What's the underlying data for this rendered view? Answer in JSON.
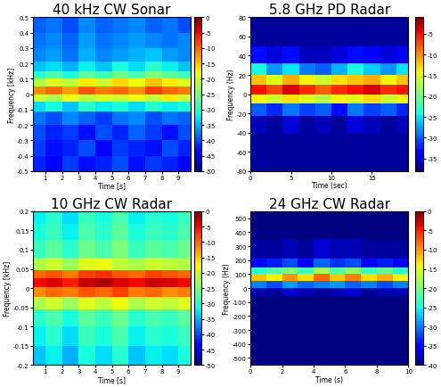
{
  "chart_data": [
    {
      "type": "heatmap",
      "title": "40 kHz CW Sonar",
      "x_label": "Time [s]",
      "y_label": "Frequency [kHz]",
      "xlim": [
        0.25,
        9.75
      ],
      "xticks": [
        1,
        2,
        3,
        4,
        5,
        6,
        7,
        8,
        9
      ],
      "ylim": [
        -0.5,
        0.5
      ],
      "yticks": [
        -0.5,
        -0.4,
        -0.3,
        -0.2,
        -0.1,
        0,
        0.1,
        0.2,
        0.3,
        0.4,
        0.5
      ],
      "x": [
        0.5,
        1.5,
        2.5,
        3.5,
        4.5,
        5.5,
        6.5,
        7.5,
        8.5,
        9.5
      ],
      "y": [
        -0.45,
        -0.35,
        -0.25,
        -0.15,
        -0.075,
        -0.025,
        0.025,
        0.075,
        0.125,
        0.175,
        0.25,
        0.35,
        0.45
      ],
      "cells": [
        [
          -42,
          -44,
          -41,
          -43,
          -42,
          -40,
          -43,
          -41,
          -42,
          -44
        ],
        [
          -41,
          -43,
          -42,
          -40,
          -44,
          -41,
          -42,
          -43,
          -40,
          -42
        ],
        [
          -40,
          -42,
          -41,
          -43,
          -40,
          -42,
          -39,
          -41,
          -43,
          -40
        ],
        [
          -38,
          -40,
          -37,
          -39,
          -41,
          -38,
          -37,
          -40,
          -38,
          -39
        ],
        [
          -33,
          -31,
          -34,
          -30,
          -32,
          -31,
          -33,
          -30,
          -32,
          -31
        ],
        [
          -20,
          -22,
          -18,
          -21,
          -19,
          -20,
          -18,
          -21,
          -17,
          -20
        ],
        [
          -12,
          -10,
          -13,
          -9,
          -11,
          -10,
          -12,
          -8,
          -10,
          -11
        ],
        [
          -22,
          -19,
          -21,
          -17,
          -20,
          -16,
          -18,
          -15,
          -17,
          -19
        ],
        [
          -30,
          -28,
          -31,
          -27,
          -29,
          -26,
          -28,
          -25,
          -27,
          -29
        ],
        [
          -34,
          -33,
          -35,
          -32,
          -34,
          -31,
          -33,
          -30,
          -32,
          -34
        ],
        [
          -37,
          -36,
          -38,
          -35,
          -37,
          -36,
          -35,
          -34,
          -36,
          -37
        ],
        [
          -38,
          -37,
          -39,
          -36,
          -38,
          -37,
          -36,
          -37,
          -38,
          -37
        ],
        [
          -39,
          -38,
          -40,
          -37,
          -39,
          -38,
          -37,
          -39,
          -38,
          -40
        ]
      ],
      "clim": [
        -50,
        0
      ],
      "cticks": [
        0,
        -5,
        -10,
        -15,
        -20,
        -25,
        -30,
        -35,
        -40,
        -45,
        -50
      ]
    },
    {
      "type": "heatmap",
      "title": "5.8 GHz PD Radar",
      "x_label": "Time (sec)",
      "y_label": "Frequency (Hz)",
      "xlim": [
        0,
        19.5
      ],
      "xticks": [
        0,
        5,
        10,
        15
      ],
      "ylim": [
        -80,
        80
      ],
      "yticks": [
        -80,
        -60,
        -40,
        -20,
        0,
        20,
        40,
        60,
        80
      ],
      "x": [
        1,
        3,
        5,
        7,
        9,
        11,
        13,
        15,
        17,
        19
      ],
      "y": [
        -70,
        -50,
        -30,
        -15,
        -5,
        5,
        15,
        25,
        40,
        60,
        75
      ],
      "cells": [
        [
          -37,
          -37,
          -37,
          -37,
          -37,
          -37,
          -37,
          -37,
          -37,
          -37
        ],
        [
          -37,
          -37,
          -37,
          -37,
          -37,
          -37,
          -37,
          -37,
          -37,
          -37
        ],
        [
          -36,
          -37,
          -35,
          -37,
          -36,
          -37,
          -35,
          -36,
          -37,
          -36
        ],
        [
          -30,
          -32,
          -29,
          -31,
          -30,
          -33,
          -29,
          -31,
          -30,
          -32
        ],
        [
          -14,
          -16,
          -13,
          -15,
          -17,
          -14,
          -15,
          -13,
          -16,
          -14
        ],
        [
          -5,
          -7,
          -4,
          -6,
          -8,
          -6,
          -5,
          -4,
          -6,
          -5
        ],
        [
          -12,
          -15,
          -11,
          -14,
          -16,
          -13,
          -12,
          -11,
          -14,
          -12
        ],
        [
          -24,
          -28,
          -25,
          -29,
          -30,
          -27,
          -24,
          -26,
          -28,
          -25
        ],
        [
          -33,
          -35,
          -33,
          -36,
          -36,
          -35,
          -33,
          -34,
          -35,
          -34
        ],
        [
          -37,
          -37,
          -37,
          -37,
          -37,
          -37,
          -37,
          -37,
          -37,
          -37
        ],
        [
          -37,
          -37,
          -37,
          -37,
          -37,
          -37,
          -37,
          -37,
          -37,
          -37
        ]
      ],
      "clim": [
        -38,
        -1
      ],
      "cticks": [
        -5,
        -10,
        -15,
        -20,
        -25,
        -30,
        -35
      ]
    },
    {
      "type": "heatmap",
      "title": "10 GHz CW Radar",
      "x_label": "Time [s]",
      "y_label": "Frequency [kHz]",
      "xlim": [
        0.25,
        9.75
      ],
      "xticks": [
        1,
        2,
        3,
        4,
        5,
        6,
        7,
        8,
        9
      ],
      "ylim": [
        -0.2,
        0.2
      ],
      "yticks": [
        -0.2,
        -0.15,
        -0.1,
        -0.05,
        0,
        0.05,
        0.1,
        0.15,
        0.2
      ],
      "x": [
        0.5,
        1.5,
        2.5,
        3.5,
        4.5,
        5.5,
        6.5,
        7.5,
        8.5,
        9.5
      ],
      "y": [
        -0.175,
        -0.125,
        -0.075,
        -0.035,
        -0.01,
        0.015,
        0.035,
        0.06,
        0.1,
        0.15,
        0.185
      ],
      "cells": [
        [
          -34,
          -32,
          -35,
          -31,
          -33,
          -30,
          -34,
          -32,
          -33,
          -31
        ],
        [
          -32,
          -30,
          -33,
          -29,
          -31,
          -28,
          -32,
          -30,
          -31,
          -29
        ],
        [
          -30,
          -28,
          -31,
          -27,
          -29,
          -26,
          -30,
          -28,
          -29,
          -27
        ],
        [
          -22,
          -20,
          -23,
          -19,
          -21,
          -18,
          -22,
          -20,
          -21,
          -19
        ],
        [
          -12,
          -10,
          -11,
          -9,
          -10,
          -8,
          -11,
          -10,
          -12,
          -11
        ],
        [
          -5,
          -4,
          -6,
          -3,
          -2,
          -4,
          -5,
          -3,
          -4,
          -5
        ],
        [
          -10,
          -9,
          -11,
          -8,
          -7,
          -9,
          -10,
          -8,
          -9,
          -10
        ],
        [
          -22,
          -20,
          -23,
          -19,
          -18,
          -21,
          -22,
          -20,
          -21,
          -22
        ],
        [
          -29,
          -27,
          -30,
          -26,
          -28,
          -25,
          -29,
          -27,
          -28,
          -26
        ],
        [
          -31,
          -29,
          -32,
          -28,
          -30,
          -27,
          -31,
          -29,
          -30,
          -28
        ],
        [
          -32,
          -30,
          -33,
          -29,
          -31,
          -28,
          -32,
          -30,
          -31,
          -29
        ]
      ],
      "clim": [
        -50,
        0
      ],
      "cticks": [
        0,
        -5,
        -10,
        -15,
        -20,
        -25,
        -30,
        -35,
        -40,
        -45,
        -50
      ]
    },
    {
      "type": "heatmap",
      "title": "24 GHz CW Radar",
      "x_label": "Time (s)",
      "y_label": "Frequency (Hz)",
      "xlim": [
        0,
        10
      ],
      "xticks": [
        0,
        2,
        4,
        6,
        8,
        10
      ],
      "ylim": [
        -550,
        550
      ],
      "yticks": [
        -500,
        -400,
        -300,
        -200,
        -100,
        0,
        100,
        200,
        300,
        400,
        500
      ],
      "x": [
        0.5,
        1.5,
        2.5,
        3.5,
        4.5,
        5.5,
        6.5,
        7.5,
        8.5,
        9.5
      ],
      "y": [
        -450,
        -250,
        -75,
        -25,
        25,
        75,
        125,
        175,
        250,
        450
      ],
      "cells": [
        [
          -40,
          -40,
          -40,
          -40,
          -40,
          -40,
          -40,
          -40,
          -40,
          -40
        ],
        [
          -40,
          -40,
          -40,
          -40,
          -40,
          -40,
          -40,
          -40,
          -40,
          -40
        ],
        [
          -40,
          -40,
          -40,
          -40,
          -40,
          -40,
          -40,
          -40,
          -40,
          -40
        ],
        [
          -38,
          -39,
          -37,
          -38,
          -39,
          -38,
          -37,
          -39,
          -38,
          -38
        ],
        [
          -30,
          -32,
          -29,
          -31,
          -30,
          -29,
          -31,
          -30,
          -32,
          -30
        ],
        [
          -12,
          -14,
          -10,
          -13,
          -8,
          -12,
          -9,
          -13,
          -11,
          -14
        ],
        [
          -24,
          -22,
          -20,
          -23,
          -18,
          -22,
          -19,
          -23,
          -21,
          -24
        ],
        [
          -35,
          -34,
          -32,
          -35,
          -31,
          -33,
          -32,
          -35,
          -34,
          -35
        ],
        [
          -39,
          -39,
          -38,
          -39,
          -37,
          -38,
          -38,
          -39,
          -39,
          -39
        ],
        [
          -40,
          -40,
          -40,
          -40,
          -40,
          -40,
          -40,
          -40,
          -40,
          -40
        ]
      ],
      "clim": [
        -40,
        0
      ],
      "cticks": [
        0,
        -5,
        -10,
        -15,
        -20,
        -25,
        -30,
        -35,
        -40
      ]
    }
  ]
}
